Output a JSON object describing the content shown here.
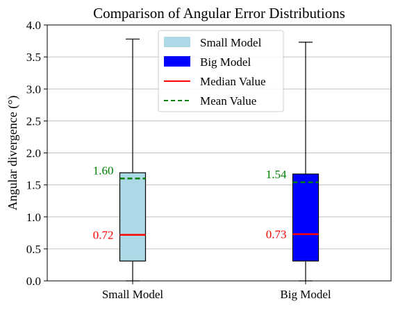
{
  "chart_data": {
    "type": "box",
    "title": "Comparison of Angular Error Distributions",
    "xlabel": "",
    "ylabel": "Angular divergence (°)",
    "ylim": [
      0,
      4.0
    ],
    "yticks": [
      "0.0",
      "0.5",
      "1.0",
      "1.5",
      "2.0",
      "2.5",
      "3.0",
      "3.5",
      "4.0"
    ],
    "grid": "horizontal",
    "legend_position": "top-center",
    "legend": [
      {
        "label": "Small Model",
        "kind": "patch",
        "color": "#add8e6"
      },
      {
        "label": "Big Model",
        "kind": "patch",
        "color": "#0000ff"
      },
      {
        "label": "Median Value",
        "kind": "line",
        "color": "#ff0000"
      },
      {
        "label": "Mean Value",
        "kind": "dashed",
        "color": "#008000"
      }
    ],
    "series": [
      {
        "category": "Small Model",
        "color": "#add8e6",
        "whisker_low": 0.0,
        "q1": 0.31,
        "median": 0.72,
        "q3": 1.69,
        "whisker_high": 3.78,
        "mean": 1.6,
        "median_label": "0.72",
        "mean_label": "1.60"
      },
      {
        "category": "Big Model",
        "color": "#0000ff",
        "whisker_low": 0.0,
        "q1": 0.31,
        "median": 0.73,
        "q3": 1.67,
        "whisker_high": 3.73,
        "mean": 1.54,
        "median_label": "0.73",
        "mean_label": "1.54"
      }
    ],
    "colors": {
      "median": "#ff0000",
      "mean": "#008000",
      "grid": "#c0c0c0"
    }
  }
}
